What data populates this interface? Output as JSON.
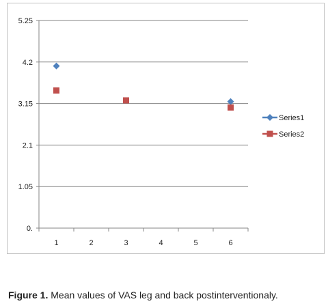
{
  "chart_data": {
    "type": "scatter",
    "x_ticks": [
      "1",
      "2",
      "3",
      "4",
      "5",
      "6"
    ],
    "y_ticks": [
      "0.",
      "1.05",
      "2.1",
      "3.15",
      "4.2",
      "5.25"
    ],
    "ylim": [
      0,
      5.25
    ],
    "xlim": [
      0.5,
      6.5
    ],
    "grid": true,
    "legend_position": "right",
    "series": [
      {
        "name": "Series1",
        "color": "#4f81bd",
        "marker": "diamond",
        "points": [
          {
            "x": 1,
            "y": 4.1
          },
          {
            "x": 6,
            "y": 3.2
          }
        ]
      },
      {
        "name": "Series2",
        "color": "#c0504d",
        "marker": "square",
        "points": [
          {
            "x": 1,
            "y": 3.48
          },
          {
            "x": 3,
            "y": 3.23
          },
          {
            "x": 6,
            "y": 3.05
          }
        ]
      }
    ]
  },
  "caption": {
    "label": "Figure 1.",
    "text": " Mean values of VAS leg and back postinterventionaly."
  }
}
